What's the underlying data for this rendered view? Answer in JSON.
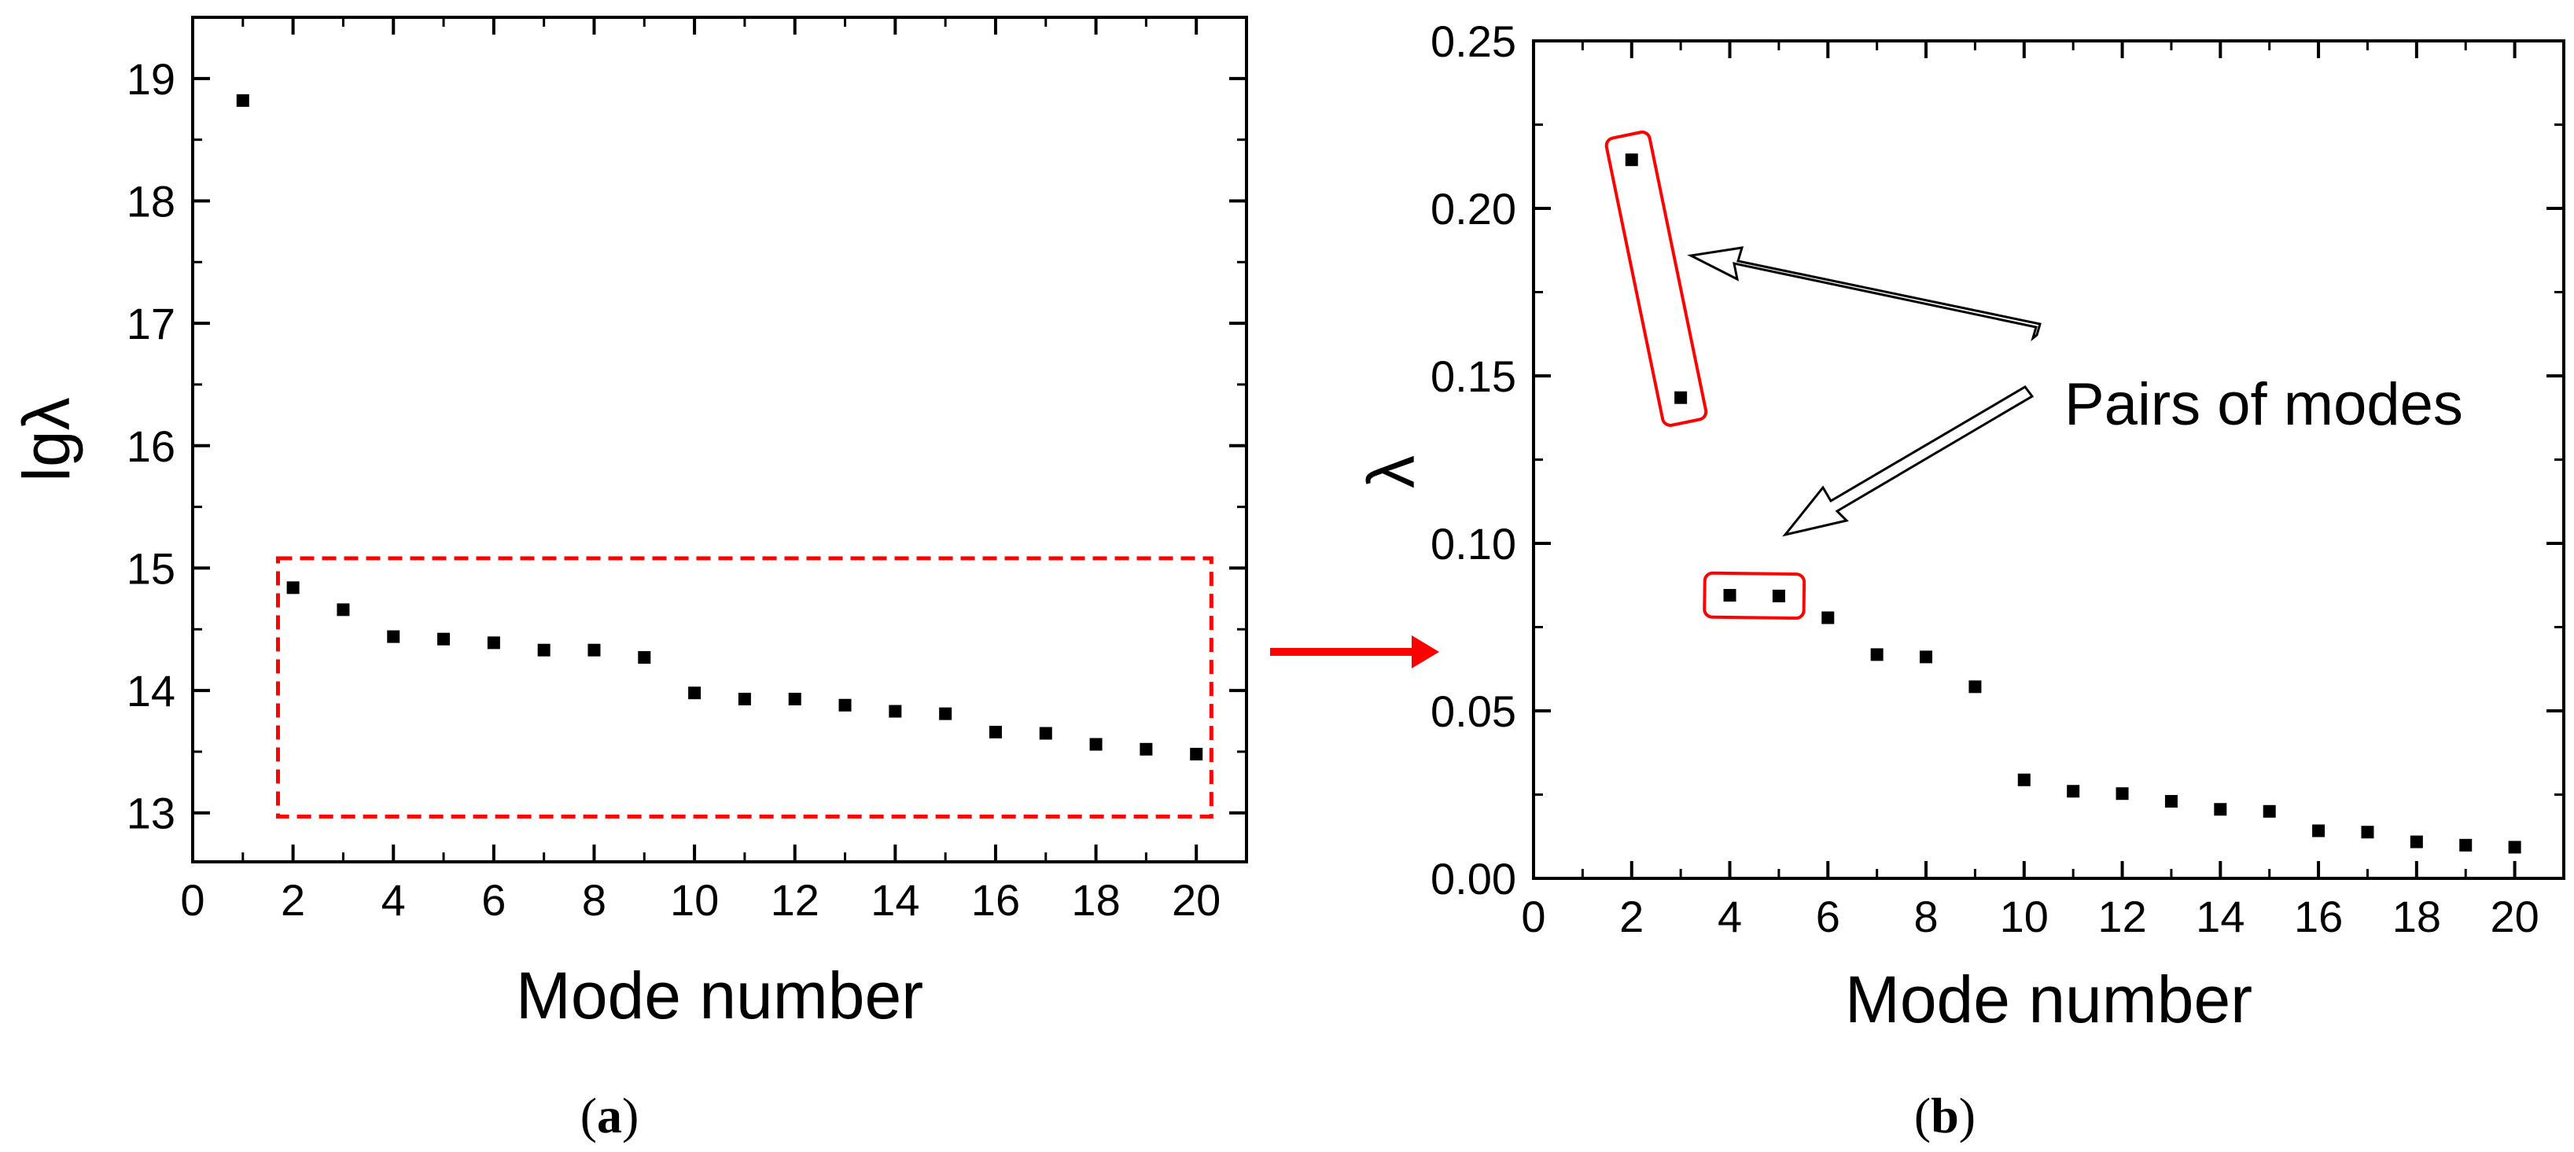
{
  "chart_data": [
    {
      "id": "a",
      "type": "scatter",
      "panel_label": "(a)",
      "panel_letter": "a",
      "xlabel": "Mode number",
      "ylabel": "lgλ",
      "xlim": [
        0,
        21
      ],
      "ylim": [
        12.6,
        19.5
      ],
      "xticks": [
        0,
        2,
        4,
        6,
        8,
        10,
        12,
        14,
        16,
        18,
        20
      ],
      "yticks": [
        13,
        14,
        15,
        16,
        17,
        18,
        19
      ],
      "x": [
        1,
        2,
        3,
        4,
        5,
        6,
        7,
        8,
        9,
        10,
        11,
        12,
        13,
        14,
        15,
        16,
        17,
        18,
        19,
        20
      ],
      "y": [
        18.82,
        14.84,
        14.66,
        14.44,
        14.42,
        14.39,
        14.33,
        14.33,
        14.27,
        13.98,
        13.93,
        13.93,
        13.88,
        13.83,
        13.81,
        13.66,
        13.65,
        13.56,
        13.52,
        13.48
      ],
      "highlight_box": {
        "x_range": [
          1.7,
          20.3
        ],
        "y_range": [
          12.97,
          15.08
        ],
        "color": "#ff0000",
        "style": "dashed"
      }
    },
    {
      "id": "b",
      "type": "scatter",
      "panel_label": "(b)",
      "panel_letter": "b",
      "xlabel": "Mode number",
      "ylabel": "λ",
      "xlim": [
        0,
        21
      ],
      "ylim": [
        0,
        0.25
      ],
      "xticks": [
        0,
        2,
        4,
        6,
        8,
        10,
        12,
        14,
        16,
        18,
        20
      ],
      "yticks": [
        0.0,
        0.05,
        0.1,
        0.15,
        0.2,
        0.25
      ],
      "ytick_labels": [
        "0.00",
        "0.05",
        "0.10",
        "0.15",
        "0.20",
        "0.25"
      ],
      "x": [
        2,
        3,
        4,
        5,
        6,
        7,
        8,
        9,
        10,
        11,
        12,
        13,
        14,
        15,
        16,
        17,
        18,
        19,
        20
      ],
      "y": [
        0.2145,
        0.1435,
        0.0845,
        0.0843,
        0.0778,
        0.0668,
        0.0661,
        0.0572,
        0.0294,
        0.026,
        0.0253,
        0.023,
        0.0206,
        0.02,
        0.0142,
        0.0138,
        0.0109,
        0.0099,
        0.0093
      ],
      "annotation": "Pairs of modes",
      "pair_groups": [
        {
          "modes": [
            2,
            3
          ]
        },
        {
          "modes": [
            4,
            5
          ]
        }
      ],
      "highlight_color": "#ff0000"
    }
  ],
  "connector_arrow_color": "#ff0000"
}
